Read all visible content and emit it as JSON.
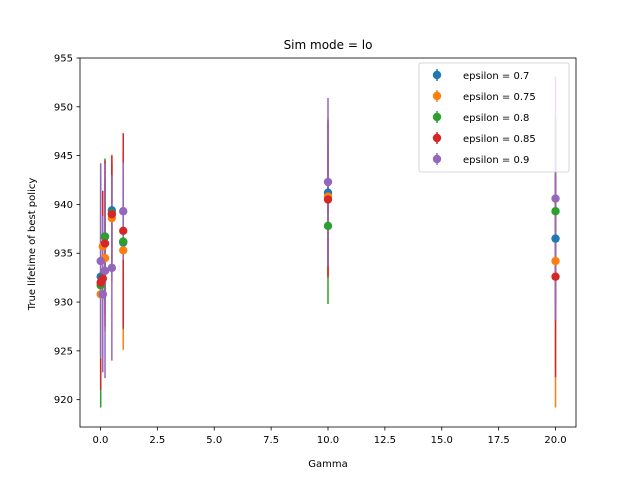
{
  "chart_data": {
    "type": "scatter",
    "title": "Sim mode = lo",
    "xlabel": "Gamma",
    "ylabel": "True lifetime of best policy",
    "xlim": [
      -0.9,
      20.9
    ],
    "ylim": [
      917.2,
      955
    ],
    "xticks": [
      0.0,
      2.5,
      5.0,
      7.5,
      10.0,
      12.5,
      15.0,
      17.5,
      20.0
    ],
    "xtick_labels": [
      "0.0",
      "2.5",
      "5.0",
      "7.5",
      "10.0",
      "12.5",
      "15.0",
      "17.5",
      "20.0"
    ],
    "yticks": [
      920,
      925,
      930,
      935,
      940,
      945,
      950,
      955
    ],
    "ytick_labels": [
      "920",
      "925",
      "930",
      "935",
      "940",
      "945",
      "950",
      "955"
    ],
    "grid": false,
    "legend_position": "top-right",
    "series": [
      {
        "name": "epsilon = 0.7",
        "color": "#1f77b4",
        "points": [
          {
            "x": 0.01,
            "y": 932.6,
            "err": 8.0
          },
          {
            "x": 0.1,
            "y": 930.8,
            "err": 6.5
          },
          {
            "x": 0.2,
            "y": 936.7,
            "err": 6.0
          },
          {
            "x": 0.5,
            "y": 939.4,
            "err": 5.0
          },
          {
            "x": 1.0,
            "y": 936.1,
            "err": 8.5
          },
          {
            "x": 10.0,
            "y": 941.2,
            "err": 7.5
          },
          {
            "x": 20.0,
            "y": 936.5,
            "err": 8.5
          }
        ]
      },
      {
        "name": "epsilon = 0.75",
        "color": "#ff7f0e",
        "points": [
          {
            "x": 0.01,
            "y": 930.8,
            "err": 8.0
          },
          {
            "x": 0.1,
            "y": 935.7,
            "err": 5.5
          },
          {
            "x": 0.2,
            "y": 934.5,
            "err": 7.5
          },
          {
            "x": 0.5,
            "y": 938.6,
            "err": 6.5
          },
          {
            "x": 1.0,
            "y": 935.3,
            "err": 10.2
          },
          {
            "x": 10.0,
            "y": 940.8,
            "err": 8.0
          },
          {
            "x": 20.0,
            "y": 934.2,
            "err": 15.0
          }
        ]
      },
      {
        "name": "epsilon = 0.8",
        "color": "#2ca02c",
        "points": [
          {
            "x": 0.01,
            "y": 931.7,
            "err": 12.5
          },
          {
            "x": 0.1,
            "y": 932.4,
            "err": 8.5
          },
          {
            "x": 0.2,
            "y": 936.7,
            "err": 8.0
          },
          {
            "x": 0.5,
            "y": 939.1,
            "err": 5.0
          },
          {
            "x": 1.0,
            "y": 936.2,
            "err": 9.0
          },
          {
            "x": 10.0,
            "y": 937.8,
            "err": 8.0
          },
          {
            "x": 20.0,
            "y": 939.3,
            "err": 9.5
          }
        ]
      },
      {
        "name": "epsilon = 0.85",
        "color": "#d62728",
        "points": [
          {
            "x": 0.01,
            "y": 932.0,
            "err": 11.0
          },
          {
            "x": 0.1,
            "y": 932.4,
            "err": 9.0
          },
          {
            "x": 0.2,
            "y": 936.0,
            "err": 8.5
          },
          {
            "x": 0.5,
            "y": 939.0,
            "err": 6.0
          },
          {
            "x": 1.0,
            "y": 937.3,
            "err": 10.0
          },
          {
            "x": 10.0,
            "y": 940.5,
            "err": 8.0
          },
          {
            "x": 20.0,
            "y": 932.6,
            "err": 10.3
          }
        ]
      },
      {
        "name": "epsilon = 0.9",
        "color": "#9467bd",
        "points": [
          {
            "x": 0.01,
            "y": 934.2,
            "err": 10.0
          },
          {
            "x": 0.1,
            "y": 930.8,
            "err": 8.0
          },
          {
            "x": 0.2,
            "y": 933.2,
            "err": 11.0
          },
          {
            "x": 0.5,
            "y": 933.5,
            "err": 9.5
          },
          {
            "x": 1.0,
            "y": 939.3,
            "err": 5.0
          },
          {
            "x": 10.0,
            "y": 942.3,
            "err": 8.6
          },
          {
            "x": 20.0,
            "y": 940.6,
            "err": 12.5
          }
        ]
      }
    ]
  }
}
